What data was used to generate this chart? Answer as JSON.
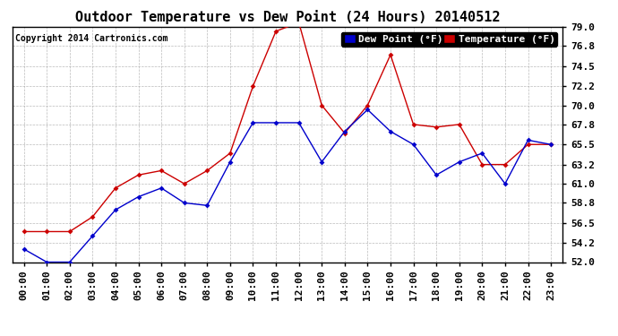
{
  "title": "Outdoor Temperature vs Dew Point (24 Hours) 20140512",
  "copyright": "Copyright 2014 Cartronics.com",
  "legend_dew": "Dew Point (°F)",
  "legend_temp": "Temperature (°F)",
  "hours": [
    "00:00",
    "01:00",
    "02:00",
    "03:00",
    "04:00",
    "05:00",
    "06:00",
    "07:00",
    "08:00",
    "09:00",
    "10:00",
    "11:00",
    "12:00",
    "13:00",
    "14:00",
    "15:00",
    "16:00",
    "17:00",
    "18:00",
    "19:00",
    "20:00",
    "21:00",
    "22:00",
    "23:00"
  ],
  "temperature": [
    55.5,
    55.5,
    55.5,
    57.2,
    60.5,
    62.0,
    62.5,
    61.0,
    62.5,
    64.5,
    72.2,
    78.5,
    79.5,
    70.0,
    66.8,
    70.0,
    75.8,
    67.8,
    67.5,
    67.8,
    63.2,
    63.2,
    65.5,
    65.5
  ],
  "dew_point": [
    53.5,
    52.0,
    52.0,
    55.0,
    58.0,
    59.5,
    60.5,
    58.8,
    58.5,
    63.5,
    68.0,
    68.0,
    68.0,
    63.5,
    67.0,
    69.5,
    67.0,
    65.5,
    62.0,
    63.5,
    64.5,
    61.0,
    66.0,
    65.5
  ],
  "ylim_min": 52.0,
  "ylim_max": 79.0,
  "yticks": [
    52.0,
    54.2,
    56.5,
    58.8,
    61.0,
    63.2,
    65.5,
    67.8,
    70.0,
    72.2,
    74.5,
    76.8,
    79.0
  ],
  "temp_color": "#cc0000",
  "dew_color": "#0000cc",
  "background_color": "#ffffff",
  "plot_bg_color": "#ffffff",
  "grid_color": "#aaaaaa",
  "title_fontsize": 11,
  "axis_fontsize": 8,
  "copyright_fontsize": 7,
  "legend_fontsize": 8
}
